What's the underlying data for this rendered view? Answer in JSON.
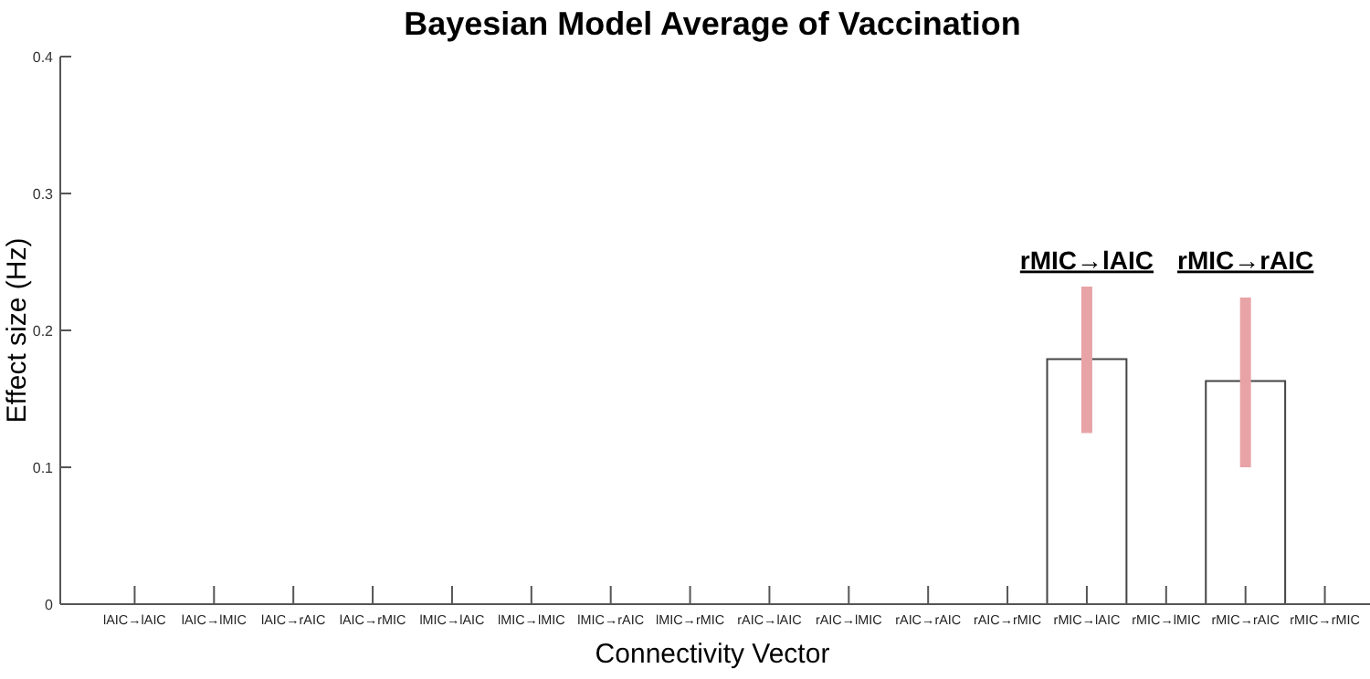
{
  "chart_data": {
    "type": "bar",
    "title": "Bayesian Model Average of Vaccination",
    "xlabel": "Connectivity Vector",
    "ylabel": "Effect size (Hz)",
    "categories": [
      "lAIC→lAIC",
      "lAIC→lMIC",
      "lAIC→rAIC",
      "lAIC→rMIC",
      "lMIC→lAIC",
      "lMIC→lMIC",
      "lMIC→rAIC",
      "lMIC→rMIC",
      "rAIC→lAIC",
      "rAIC→lMIC",
      "rAIC→rAIC",
      "rAIC→rMIC",
      "rMIC→lAIC",
      "rMIC→lMIC",
      "rMIC→rAIC",
      "rMIC→rMIC"
    ],
    "values": [
      null,
      null,
      null,
      null,
      null,
      null,
      null,
      null,
      null,
      null,
      null,
      null,
      0.179,
      null,
      0.163,
      null
    ],
    "errors": [
      null,
      null,
      null,
      null,
      null,
      null,
      null,
      null,
      null,
      null,
      null,
      null,
      [
        0.125,
        0.232
      ],
      null,
      [
        0.1,
        0.224
      ],
      null
    ],
    "color": "#ffffff",
    "ylim": [
      0,
      0.4
    ],
    "yticks": [
      0,
      0.1,
      0.2,
      0.3,
      0.4
    ],
    "grid": false,
    "annotations": [
      "rMIC→lAIC",
      "rMIC→rAIC"
    ]
  }
}
